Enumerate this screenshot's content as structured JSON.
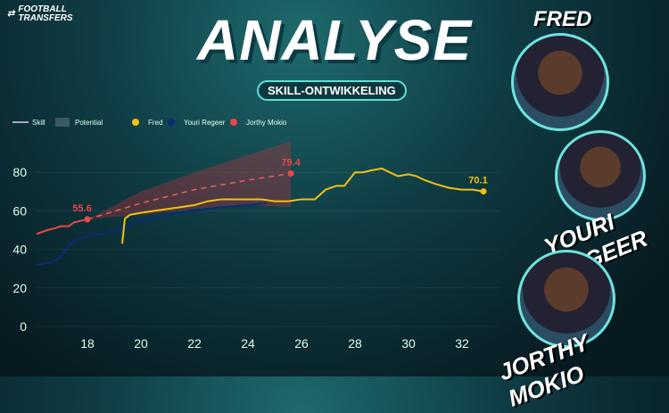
{
  "logo": {
    "line1": "FOOTBALL",
    "line2": "TRANSFERS"
  },
  "title": "ANALYSE",
  "subtitle": "SKILL-ONTWIKKELING",
  "players": [
    {
      "name": "FRED"
    },
    {
      "name": "YOURI REGEER"
    },
    {
      "name": "JORTHY MOKIO"
    }
  ],
  "chart_data": {
    "type": "line",
    "xlim": [
      16,
      33.3
    ],
    "ylim": [
      0,
      90
    ],
    "xticks": [
      "18",
      "20",
      "22",
      "24",
      "26",
      "28",
      "30",
      "32"
    ],
    "yticks": [
      "0",
      "20",
      "40",
      "60",
      "80"
    ],
    "grid": true,
    "legend_position": "top-left",
    "legend": [
      {
        "label": "Skill"
      },
      {
        "label": "Potential"
      },
      {
        "label": "Fred",
        "color": "#f2c014"
      },
      {
        "label": "Youri Regeer",
        "color": "#0d2a78"
      },
      {
        "label": "Jorthy Mokio",
        "color": "#e84848"
      }
    ],
    "series": [
      {
        "name": "Jorthy Mokio",
        "color": "#e84848",
        "x": [
          16.1,
          16.5,
          16.8,
          17,
          17.3,
          17.5,
          17.8,
          18
        ],
        "y": [
          48,
          50,
          51,
          52,
          52,
          54,
          55,
          55.6
        ],
        "end_label": "55.6"
      },
      {
        "name": "Youri Regeer",
        "color": "#0d2a78",
        "x": [
          16.1,
          16.6,
          17,
          17.3,
          17.6,
          18,
          18.5,
          19,
          19.5,
          20,
          20.5,
          21,
          21.5,
          22,
          22.5,
          23,
          24,
          24.7
        ],
        "y": [
          32,
          33,
          36,
          42,
          45,
          47,
          48,
          50,
          52,
          55,
          56,
          58,
          59,
          60,
          61,
          62,
          63,
          64
        ]
      },
      {
        "name": "Fred",
        "color": "#f2c014",
        "x": [
          19.3,
          19.4,
          19.6,
          20,
          20.5,
          21,
          21.5,
          22,
          22.5,
          23,
          23.5,
          24,
          24.5,
          25,
          25.5,
          26,
          26.5,
          26.9,
          27.3,
          27.6,
          28,
          28.3,
          28.6,
          29,
          29.3,
          29.6,
          30,
          30.3,
          30.6,
          31,
          31.5,
          32,
          32.4,
          32.8
        ],
        "y": [
          43,
          56,
          58,
          59,
          60,
          61,
          62,
          63,
          65,
          66,
          66,
          66,
          66,
          65,
          65,
          66,
          66,
          71,
          73,
          73,
          80,
          80,
          81,
          82,
          80,
          78,
          79,
          78,
          76,
          74,
          72,
          71,
          71,
          70.1
        ],
        "end_label": "70.1"
      }
    ],
    "potential": {
      "player": "Jorthy Mokio",
      "x": [
        18,
        20,
        22,
        24,
        25.6
      ],
      "y": [
        55.6,
        64,
        71,
        76,
        79.4
      ],
      "upper": [
        55.6,
        70,
        80,
        89,
        96
      ],
      "lower": [
        55.6,
        58,
        61,
        63,
        62
      ],
      "end_label": "79.4"
    }
  }
}
